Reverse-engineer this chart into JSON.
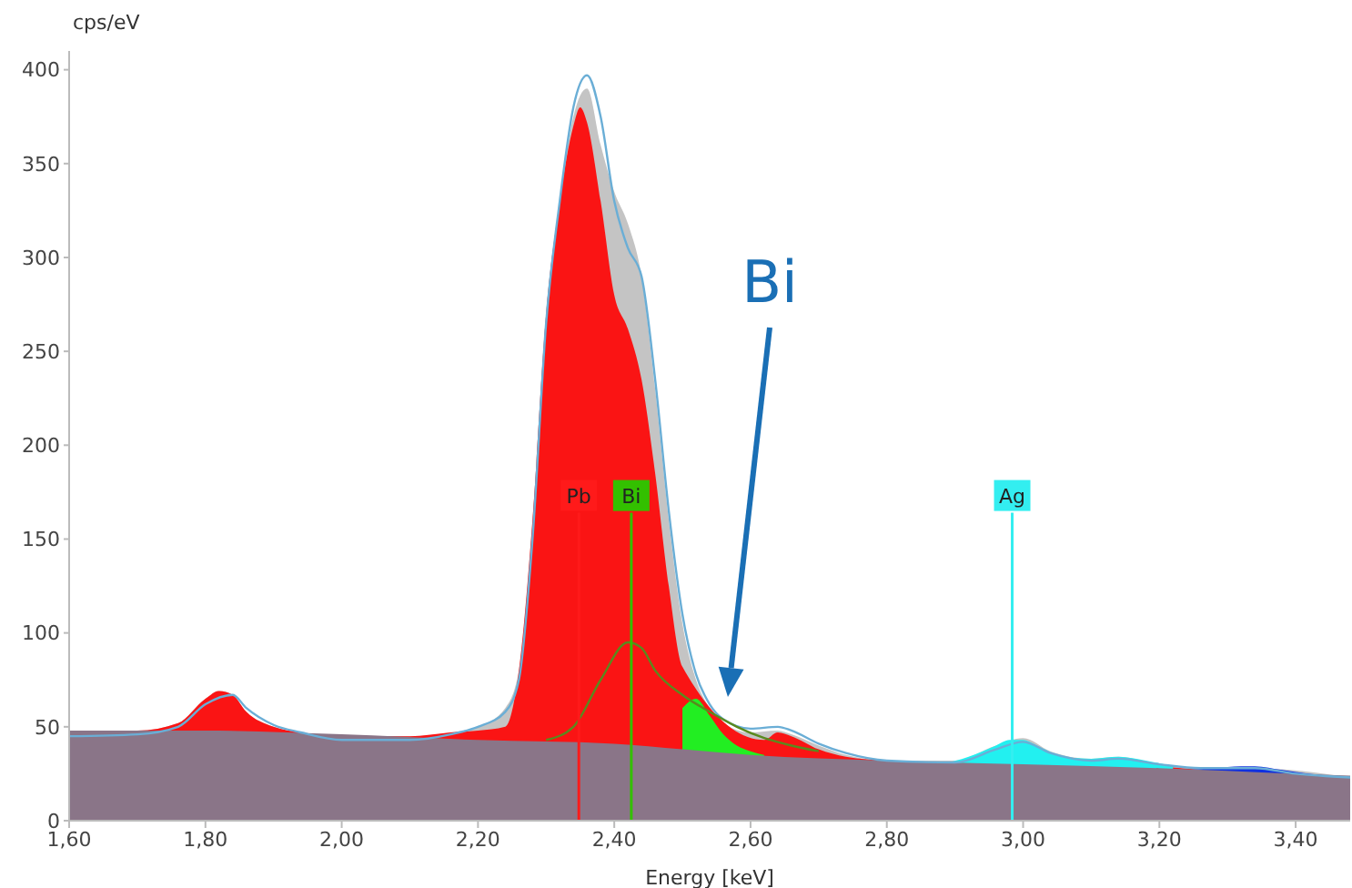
{
  "chart_data": {
    "type": "area",
    "xlabel": "Energy [keV]",
    "ylabel": "cps/eV",
    "xlim": [
      1.6,
      3.48
    ],
    "ylim": [
      0,
      410
    ],
    "xticks": [
      {
        "value": 1.6,
        "label": "1,60"
      },
      {
        "value": 1.8,
        "label": "1,80"
      },
      {
        "value": 2.0,
        "label": "2,00"
      },
      {
        "value": 2.2,
        "label": "2,20"
      },
      {
        "value": 2.4,
        "label": "2,40"
      },
      {
        "value": 2.6,
        "label": "2,60"
      },
      {
        "value": 2.8,
        "label": "2,80"
      },
      {
        "value": 3.0,
        "label": "3,00"
      },
      {
        "value": 3.2,
        "label": "3,20"
      },
      {
        "value": 3.4,
        "label": "3,40"
      }
    ],
    "yticks": [
      0,
      50,
      100,
      150,
      200,
      250,
      300,
      350,
      400
    ],
    "series": [
      {
        "color": "#c4c4c4",
        "x": [
          1.6,
          1.7,
          1.76,
          1.8,
          1.82,
          1.84,
          1.86,
          1.9,
          1.94,
          2.0,
          2.1,
          2.16,
          2.2,
          2.24,
          2.26,
          2.28,
          2.3,
          2.32,
          2.34,
          2.36,
          2.38,
          2.4,
          2.42,
          2.44,
          2.46,
          2.48,
          2.5,
          2.52,
          2.54,
          2.56,
          2.6,
          2.64,
          2.66,
          2.7,
          2.74,
          2.8,
          2.9,
          2.96,
          3.0,
          3.04,
          3.1,
          3.14,
          3.2,
          3.26,
          3.3,
          3.34,
          3.48
        ],
        "values": [
          48,
          48,
          52,
          65,
          69,
          67,
          58,
          50,
          47,
          45,
          45,
          47,
          50,
          60,
          80,
          160,
          270,
          330,
          375,
          390,
          360,
          335,
          318,
          290,
          230,
          160,
          105,
          75,
          60,
          52,
          47,
          48,
          46,
          40,
          35,
          32,
          32,
          40,
          44,
          37,
          33,
          34,
          30,
          28,
          28,
          28,
          23
        ]
      },
      {
        "color": "#fa1414",
        "x": [
          1.6,
          1.7,
          1.76,
          1.8,
          1.82,
          1.84,
          1.86,
          1.9,
          1.94,
          2.0,
          2.1,
          2.16,
          2.2,
          2.24,
          2.26,
          2.28,
          2.3,
          2.32,
          2.34,
          2.35,
          2.36,
          2.38,
          2.4,
          2.42,
          2.44,
          2.46,
          2.48,
          2.5,
          2.62,
          2.64,
          2.66,
          2.7,
          2.74,
          2.8,
          2.9,
          3.1,
          3.2,
          3.48
        ],
        "values": [
          48,
          48,
          52,
          65,
          69,
          67,
          58,
          50,
          47,
          45,
          45,
          47,
          48,
          50,
          80,
          160,
          270,
          330,
          370,
          380,
          372,
          330,
          280,
          262,
          235,
          185,
          125,
          82,
          43,
          47,
          45,
          38,
          34,
          32,
          30,
          33,
          29,
          23
        ]
      },
      {
        "color": "#22ee22",
        "x": [
          2.5,
          2.52,
          2.54,
          2.56,
          2.58,
          2.6,
          2.62
        ],
        "values": [
          60,
          65,
          56,
          46,
          40,
          37,
          35
        ]
      },
      {
        "color": "#22f0f0",
        "x": [
          2.88,
          2.92,
          2.96,
          2.98,
          3.0,
          3.02,
          3.06,
          3.1,
          3.14,
          3.18,
          3.22
        ],
        "values": [
          30,
          34,
          40,
          43,
          43,
          40,
          34,
          33,
          34,
          32,
          29
        ]
      },
      {
        "color": "#1030e0",
        "x": [
          3.24,
          3.28,
          3.32,
          3.34,
          3.38,
          3.42,
          3.48
        ],
        "values": [
          27,
          28,
          29,
          29,
          27,
          25,
          23
        ]
      },
      {
        "color": "#8a7588",
        "x": [
          1.6,
          1.8,
          2.0,
          2.2,
          2.4,
          2.5,
          2.6,
          2.8,
          3.0,
          3.2,
          3.4,
          3.48
        ],
        "values": [
          48,
          48,
          46,
          43,
          41,
          38,
          35,
          32,
          30,
          28,
          25,
          24
        ]
      },
      {
        "type": "line",
        "color": "#6aaed6",
        "x": [
          1.6,
          1.7,
          1.76,
          1.8,
          1.84,
          1.86,
          1.9,
          1.94,
          2.0,
          2.1,
          2.16,
          2.2,
          2.24,
          2.26,
          2.28,
          2.3,
          2.32,
          2.34,
          2.36,
          2.38,
          2.4,
          2.42,
          2.44,
          2.46,
          2.48,
          2.5,
          2.52,
          2.54,
          2.56,
          2.6,
          2.64,
          2.66,
          2.7,
          2.74,
          2.8,
          2.9,
          2.96,
          3.0,
          3.04,
          3.1,
          3.14,
          3.2,
          3.26,
          3.3,
          3.34,
          3.4,
          3.48
        ],
        "values": [
          45,
          46,
          50,
          62,
          67,
          60,
          51,
          47,
          43,
          43,
          46,
          50,
          58,
          75,
          150,
          265,
          330,
          380,
          397,
          375,
          330,
          305,
          290,
          235,
          165,
          110,
          78,
          62,
          54,
          49,
          50,
          48,
          41,
          36,
          32,
          31,
          38,
          42,
          36,
          32,
          33,
          30,
          28,
          28,
          28,
          25,
          23
        ]
      },
      {
        "type": "line",
        "color": "#5a8a1e",
        "x": [
          2.3,
          2.34,
          2.38,
          2.42,
          2.44,
          2.46,
          2.5,
          2.54,
          2.58,
          2.62,
          2.66,
          2.7
        ],
        "values": [
          43,
          50,
          75,
          95,
          92,
          80,
          67,
          58,
          50,
          44,
          40,
          37
        ]
      }
    ],
    "ref_lines": [
      {
        "axis": "x",
        "value": 2.348,
        "label": "Pb",
        "color": "#ff1a1a"
      },
      {
        "axis": "x",
        "value": 2.425,
        "label": "Bi",
        "color": "#33c000"
      },
      {
        "axis": "x",
        "value": 2.984,
        "label": "Ag",
        "color": "#33eef0"
      }
    ],
    "annotations": [
      "Bi"
    ]
  }
}
